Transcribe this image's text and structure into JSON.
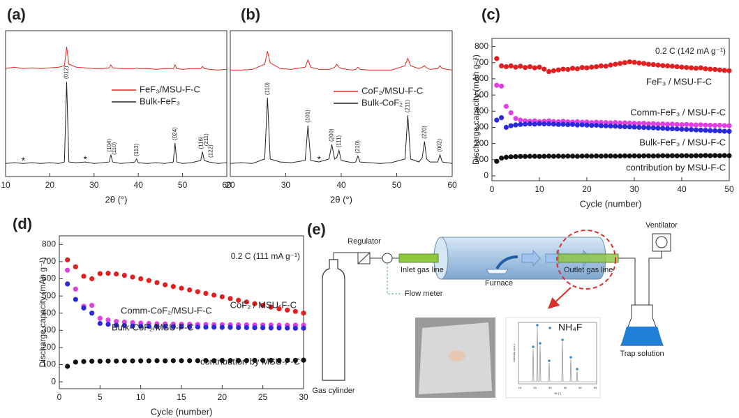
{
  "chart_data": [
    {
      "type": "line",
      "title": "(a)",
      "xlabel": "2θ (°)",
      "x": [
        10,
        12,
        14,
        16,
        18,
        20,
        22,
        23.3,
        23.8,
        24.3,
        26,
        28,
        30,
        32,
        33.4,
        33.8,
        34.2,
        36,
        38,
        39.2,
        39.6,
        40,
        42,
        44,
        46,
        47.9,
        48.3,
        48.7,
        50,
        52,
        54.1,
        54.5,
        54.9,
        56,
        58,
        60
      ],
      "series": [
        {
          "name": "FeF₃/MSU-F-C",
          "color": "#e8251f",
          "values": [
            74,
            75,
            74,
            74.5,
            74,
            74.5,
            75,
            76,
            89,
            77,
            75,
            74.5,
            74,
            74,
            74.5,
            76.5,
            74.5,
            74,
            74,
            74,
            74.5,
            74,
            74,
            73.5,
            74,
            74,
            76.5,
            74,
            73.5,
            74,
            74,
            75.5,
            74,
            73.5,
            73,
            73.5
          ]
        },
        {
          "name": "Bulk-FeF₃",
          "color": "#222222",
          "values": [
            9,
            9.5,
            9,
            9.5,
            9,
            9.5,
            9,
            10,
            65,
            10,
            9.5,
            10,
            9,
            9.5,
            10,
            15,
            10,
            9,
            9.5,
            10,
            12,
            9.5,
            9,
            9.5,
            9,
            10,
            23,
            10,
            9,
            9.5,
            11,
            17,
            11,
            10,
            9,
            9.5
          ]
        }
      ],
      "annotations": [
        {
          "text": "(012)",
          "x": 23.8,
          "y": 65
        },
        {
          "text": "(104)",
          "x": 33.5,
          "y": 15
        },
        {
          "text": "(110)",
          "x": 34.6,
          "y": 13
        },
        {
          "text": "(113)",
          "x": 39.6,
          "y": 12
        },
        {
          "text": "(024)",
          "x": 48.3,
          "y": 23
        },
        {
          "text": "(116)",
          "x": 54.2,
          "y": 17
        },
        {
          "text": "(211)",
          "x": 55.4,
          "y": 19
        },
        {
          "text": "(122)",
          "x": 56.4,
          "y": 11
        },
        {
          "text": "*",
          "x": 14,
          "y": 9,
          "color": "#4a7fc1"
        },
        {
          "text": "*",
          "x": 28,
          "y": 10,
          "color": "#4a7fc1"
        }
      ],
      "xlim": [
        10,
        60
      ],
      "xticks": [
        10,
        20,
        30,
        40,
        50,
        60
      ],
      "ylim": [
        0,
        100
      ]
    },
    {
      "type": "line",
      "title": "(b)",
      "xlabel": "2θ (°)",
      "x": [
        20,
        22,
        24,
        26.2,
        26.7,
        27.2,
        29,
        31,
        33.5,
        34,
        34.5,
        36,
        37.8,
        38.3,
        38.8,
        39.2,
        39.6,
        40,
        42,
        42.6,
        43,
        43.4,
        45,
        47,
        49,
        51.5,
        52,
        52.5,
        54,
        54.6,
        55,
        55.4,
        56,
        57.4,
        57.8,
        58.2,
        60
      ],
      "series": [
        {
          "name": "CoF₂/MSU-F-C",
          "color": "#e8251f",
          "values": [
            73,
            73,
            73.5,
            77,
            86,
            78,
            74,
            73.5,
            75,
            80,
            75,
            73.5,
            73.5,
            74,
            75,
            77,
            75,
            74,
            73,
            73.5,
            75,
            73.5,
            73,
            73,
            73,
            76,
            81,
            76,
            74,
            75,
            76,
            74.5,
            73.5,
            74,
            76,
            74,
            73
          ]
        },
        {
          "name": "Bulk-CoF₂",
          "color": "#222222",
          "values": [
            9,
            9.5,
            9,
            12,
            54,
            12,
            10,
            9.5,
            11,
            35,
            11,
            10,
            12,
            22,
            12,
            13,
            18,
            11,
            9.5,
            10,
            14,
            10,
            9.5,
            9,
            9.5,
            12,
            42,
            12,
            10,
            13,
            24,
            12,
            10,
            10,
            15,
            10,
            9
          ]
        }
      ],
      "annotations": [
        {
          "text": "(110)",
          "x": 26.7,
          "y": 54
        },
        {
          "text": "(101)",
          "x": 34,
          "y": 35
        },
        {
          "text": "(200)",
          "x": 38.3,
          "y": 22
        },
        {
          "text": "(111)",
          "x": 39.6,
          "y": 18
        },
        {
          "text": "(210)",
          "x": 43,
          "y": 14
        },
        {
          "text": "(211)",
          "x": 52,
          "y": 42
        },
        {
          "text": "(220)",
          "x": 55,
          "y": 24
        },
        {
          "text": "(002)",
          "x": 57.8,
          "y": 15
        },
        {
          "text": "*",
          "x": 36,
          "y": 10,
          "color": "#4a7fc1"
        }
      ],
      "xlim": [
        20,
        60
      ],
      "xticks": [
        20,
        30,
        40,
        50,
        60
      ],
      "ylim": [
        0,
        100
      ]
    },
    {
      "type": "scatter",
      "title": "(c)",
      "xlabel": "Cycle (number)",
      "ylabel": "Discharge capacity (mAh g⁻¹)",
      "note": "0.2 C (142 mA g⁻¹)",
      "x": [
        1,
        2,
        3,
        4,
        5,
        6,
        7,
        8,
        9,
        10,
        11,
        12,
        13,
        14,
        15,
        16,
        17,
        18,
        19,
        20,
        21,
        22,
        23,
        24,
        25,
        26,
        27,
        28,
        29,
        30,
        31,
        32,
        33,
        34,
        35,
        36,
        37,
        38,
        39,
        40,
        41,
        42,
        43,
        44,
        45,
        46,
        47,
        48,
        49,
        50
      ],
      "series": [
        {
          "name": "FeF₃ / MSU-F-C",
          "color": "#e02020",
          "values": [
            725,
            680,
            675,
            680,
            672,
            678,
            670,
            675,
            668,
            672,
            660,
            645,
            650,
            655,
            660,
            658,
            665,
            662,
            670,
            668,
            672,
            675,
            680,
            678,
            685,
            690,
            695,
            700,
            705,
            702,
            698,
            695,
            690,
            688,
            685,
            682,
            680,
            678,
            675,
            672,
            670,
            668,
            665,
            668,
            662,
            660,
            658,
            655,
            652,
            650
          ]
        },
        {
          "name": "Comm-FeF₃ / MSU-F-C",
          "color": "#e040e0",
          "values": [
            560,
            555,
            430,
            390,
            355,
            345,
            340,
            338,
            340,
            335,
            338,
            340,
            336,
            335,
            338,
            334,
            333,
            335,
            332,
            333,
            330,
            332,
            331,
            330,
            328,
            330,
            327,
            328,
            326,
            325,
            324,
            325,
            322,
            323,
            320,
            321,
            319,
            320,
            318,
            317,
            318,
            316,
            315,
            316,
            314,
            313,
            312,
            313,
            311,
            310
          ]
        },
        {
          "name": "Bulk-FeF₃ / MSU-F-C",
          "color": "#2a2ad8",
          "values": [
            345,
            360,
            300,
            310,
            315,
            318,
            320,
            322,
            320,
            323,
            321,
            322,
            320,
            318,
            319,
            317,
            318,
            315,
            316,
            314,
            312,
            313,
            310,
            309,
            308,
            307,
            305,
            304,
            303,
            302,
            300,
            299,
            298,
            297,
            295,
            294,
            292,
            291,
            290,
            288,
            287,
            286,
            284,
            283,
            282,
            280,
            279,
            278,
            276,
            275
          ]
        },
        {
          "name": "contribution by MSU-F-C",
          "color": "#111111",
          "values": [
            90,
            110,
            115,
            118,
            119,
            120,
            120,
            121,
            121,
            120,
            121,
            122,
            121,
            122,
            121,
            122,
            122,
            121,
            122,
            123,
            122,
            123,
            122,
            123,
            123,
            122,
            123,
            124,
            123,
            124,
            123,
            124,
            124,
            123,
            124,
            125,
            124,
            125,
            124,
            125,
            125,
            124,
            125,
            125,
            126,
            125,
            126,
            125,
            126,
            125
          ]
        }
      ],
      "xlim": [
        0,
        50
      ],
      "xticks": [
        0,
        10,
        20,
        30,
        40,
        50
      ],
      "ylim": [
        -30,
        850
      ],
      "yticks": [
        0,
        100,
        200,
        300,
        400,
        500,
        600,
        700,
        800
      ]
    },
    {
      "type": "scatter",
      "title": "(d)",
      "xlabel": "Cycle (number)",
      "ylabel": "Discharge capacity (mAh g⁻¹)",
      "note": "0.2 C (111 mA g⁻¹)",
      "x": [
        1,
        2,
        3,
        4,
        5,
        6,
        7,
        8,
        9,
        10,
        11,
        12,
        13,
        14,
        15,
        16,
        17,
        18,
        19,
        20,
        21,
        22,
        23,
        24,
        25,
        26,
        27,
        28,
        29,
        30
      ],
      "series": [
        {
          "name": "CoF₂ / MSU-F-C",
          "color": "#e02020",
          "values": [
            710,
            670,
            615,
            600,
            630,
            632,
            628,
            620,
            610,
            600,
            590,
            578,
            565,
            555,
            545,
            535,
            525,
            515,
            505,
            495,
            485,
            475,
            465,
            455,
            445,
            435,
            425,
            418,
            410,
            400
          ]
        },
        {
          "name": "Comm-CoF₂/MSU-F-C",
          "color": "#e040e0",
          "values": [
            650,
            540,
            440,
            445,
            370,
            360,
            352,
            348,
            345,
            342,
            340,
            338,
            337,
            336,
            335,
            335,
            334,
            334,
            333,
            333,
            332,
            332,
            332,
            331,
            331,
            331,
            330,
            330,
            330,
            330
          ]
        },
        {
          "name": "Bulk-CoF₂/MSU-F-C",
          "color": "#2a2ad8",
          "values": [
            570,
            480,
            430,
            400,
            340,
            335,
            330,
            328,
            325,
            324,
            323,
            322,
            322,
            321,
            320,
            320,
            319,
            318,
            318,
            317,
            317,
            316,
            316,
            315,
            315,
            314,
            314,
            313,
            312,
            312
          ]
        },
        {
          "name": "contribution by MSU-F-C",
          "color": "#111111",
          "values": [
            90,
            115,
            118,
            120,
            120,
            121,
            121,
            122,
            122,
            122,
            122,
            123,
            122,
            123,
            123,
            123,
            123,
            124,
            123,
            124,
            124,
            124,
            124,
            125,
            125,
            125,
            124,
            125,
            125,
            126
          ]
        }
      ],
      "xlim": [
        0,
        30
      ],
      "xticks": [
        0,
        5,
        10,
        15,
        20,
        25,
        30
      ],
      "ylim": [
        -40,
        850
      ],
      "yticks": [
        0,
        100,
        200,
        300,
        400,
        500,
        600,
        700,
        800
      ]
    }
  ],
  "diagram": {
    "label": "(e)",
    "regulator": "Regulator",
    "inlet": "Inlet gas line",
    "flow_meter": "Flow meter",
    "furnace": "Furnace",
    "outlet": "Outlet gas line",
    "ventilator": "Ventilator",
    "cylinder": "Gas cylinder",
    "trap": "Trap solution",
    "inset": {
      "title": "NH₄F",
      "ylabel": "Intensity (a.u.)",
      "xlabel": "2θ (°)",
      "xticks": [
        "10",
        "20",
        "30",
        "40",
        "50",
        "60"
      ]
    }
  }
}
